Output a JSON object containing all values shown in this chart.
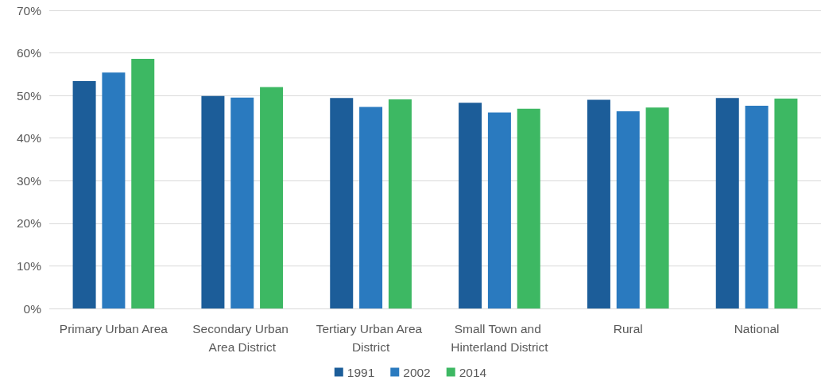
{
  "chart_data": {
    "type": "bar",
    "categories": [
      "Primary Urban Area",
      "Secondary Urban Area District",
      "Tertiary Urban Area District",
      "Small Town and Hinterland District",
      "Rural",
      "National"
    ],
    "series": [
      {
        "name": "1991",
        "color": "#1c5d99",
        "values": [
          53.4,
          49.9,
          49.4,
          48.3,
          49.0,
          49.4
        ]
      },
      {
        "name": "2002",
        "color": "#2a7abf",
        "values": [
          55.4,
          49.5,
          47.3,
          46.0,
          46.3,
          47.6
        ]
      },
      {
        "name": "2014",
        "color": "#3db863",
        "values": [
          58.6,
          52.0,
          49.1,
          46.9,
          47.2,
          49.3
        ]
      }
    ],
    "ylim": [
      0,
      70
    ],
    "yticks": [
      {
        "value": 0,
        "label": "0%"
      },
      {
        "value": 10,
        "label": "10%"
      },
      {
        "value": 20,
        "label": "20%"
      },
      {
        "value": 30,
        "label": "30%"
      },
      {
        "value": 40,
        "label": "40%"
      },
      {
        "value": 50,
        "label": "50%"
      },
      {
        "value": 60,
        "label": "60%"
      },
      {
        "value": 70,
        "label": "70%"
      }
    ],
    "grid": "y",
    "legend": "bottom"
  }
}
